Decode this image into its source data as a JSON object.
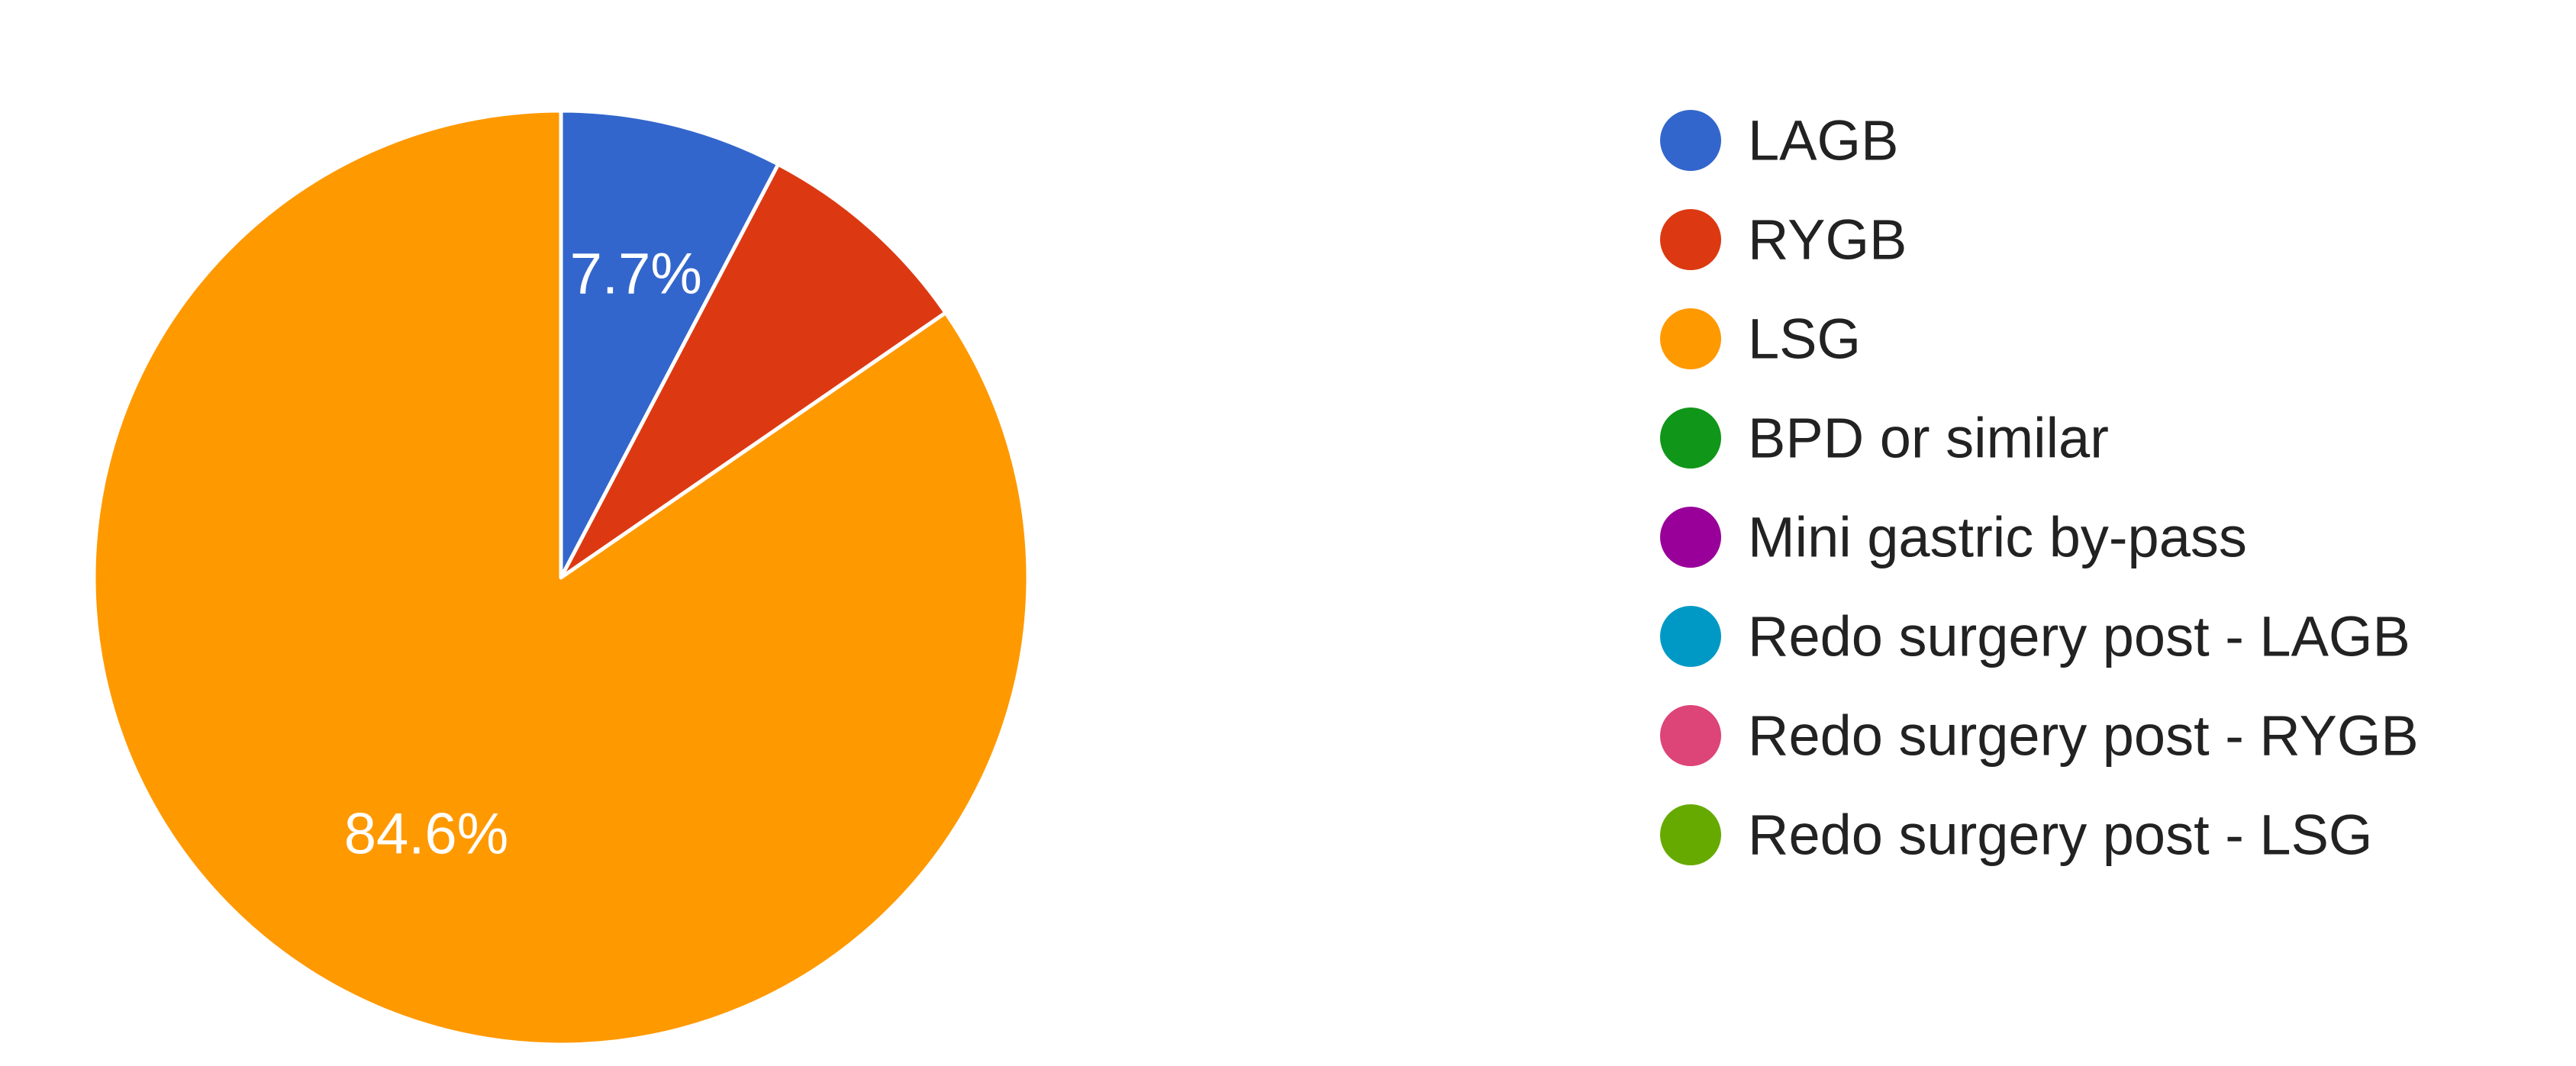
{
  "chart_data": {
    "type": "pie",
    "series": [
      {
        "categories": [
          "LAGB",
          "RYGB",
          "LSG",
          "BPD or similar",
          "Mini gastric by-pass",
          "Redo surgery post - LAGB",
          "Redo surgery post - RYGB",
          "Redo surgery post - LSG"
        ],
        "values": [
          7.7,
          7.7,
          84.6,
          0,
          0,
          0,
          0,
          0
        ],
        "colors": [
          "#3366cc",
          "#dc3912",
          "#ff9900",
          "#109618",
          "#990099",
          "#0099c6",
          "#dd4477",
          "#66aa00"
        ]
      }
    ],
    "data_labels": [
      "7.7%",
      "",
      "84.6%",
      "",
      "",
      "",
      "",
      ""
    ],
    "legend_position": "right",
    "start_angle_deg": 90,
    "direction": "clockwise"
  }
}
